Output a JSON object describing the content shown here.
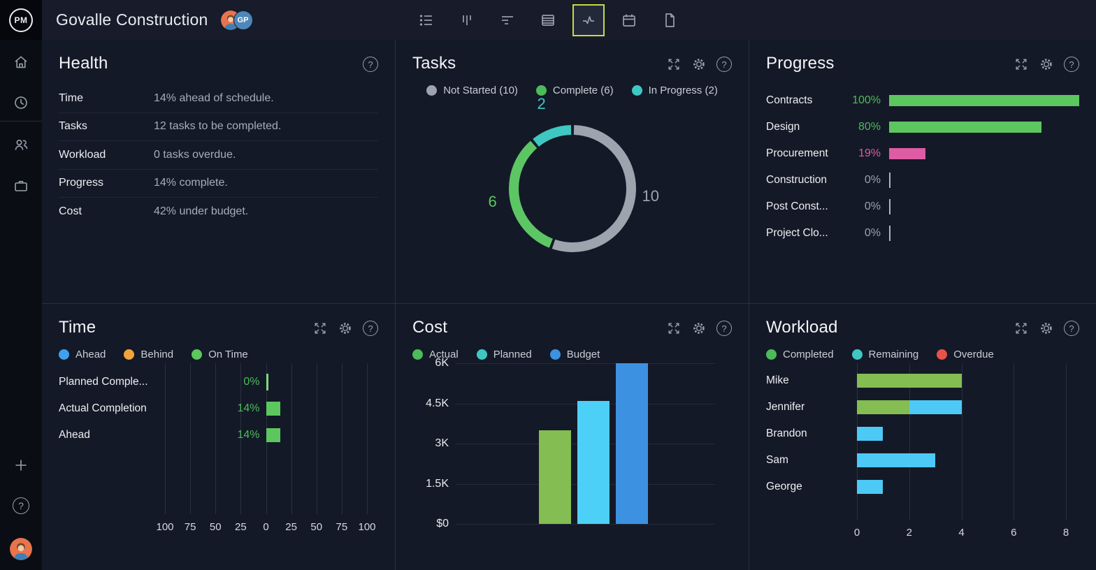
{
  "header": {
    "logo_text": "PM",
    "title": "Govalle Construction",
    "team_avatar_initials": "GP",
    "toolbar": {
      "icons": [
        "list",
        "board",
        "gantt",
        "sheet",
        "activity",
        "calendar",
        "file"
      ],
      "active": "activity"
    }
  },
  "sidebar": {
    "help_glyph": "?",
    "plus_glyph": "+"
  },
  "panels": {
    "health": {
      "title": "Health",
      "rows": [
        {
          "label": "Time",
          "value": "14% ahead of schedule."
        },
        {
          "label": "Tasks",
          "value": "12 tasks to be completed."
        },
        {
          "label": "Workload",
          "value": "0 tasks overdue."
        },
        {
          "label": "Progress",
          "value": "14% complete."
        },
        {
          "label": "Cost",
          "value": "42% under budget."
        }
      ]
    },
    "tasks": {
      "title": "Tasks"
    },
    "progress": {
      "title": "Progress"
    },
    "time": {
      "title": "Time"
    },
    "cost": {
      "title": "Cost"
    },
    "workload": {
      "title": "Workload"
    }
  },
  "chart_data": [
    {
      "panel": "tasks",
      "type": "pie",
      "subtype": "donut",
      "title": "Tasks",
      "start": "top",
      "direction": "clockwise",
      "total": 18,
      "legend": [
        {
          "label": "Not Started (10)",
          "color": "#9EA4AE"
        },
        {
          "label": "Complete (6)",
          "color": "#4CBB5A"
        },
        {
          "label": "In Progress (2)",
          "color": "#3EC8C1"
        }
      ],
      "slices": [
        {
          "label": "Not Started",
          "value": 10,
          "data_label": "10",
          "color": "#9EA4AE"
        },
        {
          "label": "Complete",
          "value": 6,
          "data_label": "6",
          "color": "#5CC664"
        },
        {
          "label": "In Progress",
          "value": 2,
          "data_label": "2",
          "color": "#3EC8C1"
        }
      ]
    },
    {
      "panel": "progress",
      "type": "bar",
      "orientation": "horizontal",
      "title": "Progress",
      "categories": [
        "Contracts",
        "Design",
        "Procurement",
        "Construction",
        "Post Const...",
        "Project Clo..."
      ],
      "values": [
        100,
        80,
        19,
        0,
        0,
        0
      ],
      "value_labels": [
        "100%",
        "80%",
        "19%",
        "0%",
        "0%",
        "0%"
      ],
      "bar_colors": [
        "#5DC75F",
        "#5DC75F",
        "#DD5CA4",
        null,
        null,
        null
      ],
      "label_colors": [
        "#4CBB5A",
        "#4CBB5A",
        "#DD5CA4",
        "#9AA1AF",
        "#9AA1AF",
        "#9AA1AF"
      ],
      "xlim": [
        0,
        100
      ],
      "grid": false
    },
    {
      "panel": "time",
      "type": "bar",
      "orientation": "horizontal-diverging",
      "title": "Time",
      "legend": [
        {
          "label": "Ahead",
          "color": "#41A0ED"
        },
        {
          "label": "Behind",
          "color": "#F2A33C"
        },
        {
          "label": "On Time",
          "color": "#5CC75C"
        }
      ],
      "categories": [
        "Planned Comple...",
        "Actual Completion",
        "Ahead"
      ],
      "values": [
        0,
        14,
        14
      ],
      "value_labels": [
        "0%",
        "14%",
        "14%"
      ],
      "bar_color": "#5DC75F",
      "axis_ticks": [
        "100",
        "75",
        "50",
        "25",
        "0",
        "25",
        "50",
        "75",
        "100"
      ],
      "xlim": [
        -100,
        100
      ],
      "grid": true
    },
    {
      "panel": "cost",
      "type": "bar",
      "orientation": "vertical",
      "title": "Cost",
      "legend": [
        {
          "label": "Actual",
          "color": "#4CBB5A"
        },
        {
          "label": "Planned",
          "color": "#3EC8C1"
        },
        {
          "label": "Budget",
          "color": "#3C92E1"
        }
      ],
      "categories": [
        "Actual",
        "Planned",
        "Budget"
      ],
      "values": [
        3500,
        4600,
        6000
      ],
      "bar_colors": [
        "#84BD51",
        "#4DD0F7",
        "#3C92E1"
      ],
      "ytick_labels": [
        "$0",
        "1.5K",
        "3K",
        "4.5K",
        "6K"
      ],
      "ylim": [
        0,
        6000
      ],
      "grid": true
    },
    {
      "panel": "workload",
      "type": "bar",
      "orientation": "horizontal-stacked",
      "title": "Workload",
      "legend": [
        {
          "label": "Completed",
          "color": "#4CBB5A"
        },
        {
          "label": "Remaining",
          "color": "#3EC8C1"
        },
        {
          "label": "Overdue",
          "color": "#E8524A"
        }
      ],
      "categories": [
        "Mike",
        "Jennifer",
        "Brandon",
        "Sam",
        "George"
      ],
      "series": [
        {
          "name": "Completed",
          "color": "#84BD51",
          "values": [
            4,
            2,
            0,
            0,
            0
          ]
        },
        {
          "name": "Remaining",
          "color": "#4DC9F6",
          "values": [
            0,
            2,
            1,
            3,
            1
          ]
        },
        {
          "name": "Overdue",
          "color": "#E8524A",
          "values": [
            0,
            0,
            0,
            0,
            0
          ]
        }
      ],
      "xtick_labels": [
        "0",
        "2",
        "4",
        "6",
        "8"
      ],
      "xlim": [
        0,
        8
      ],
      "grid": true
    }
  ]
}
